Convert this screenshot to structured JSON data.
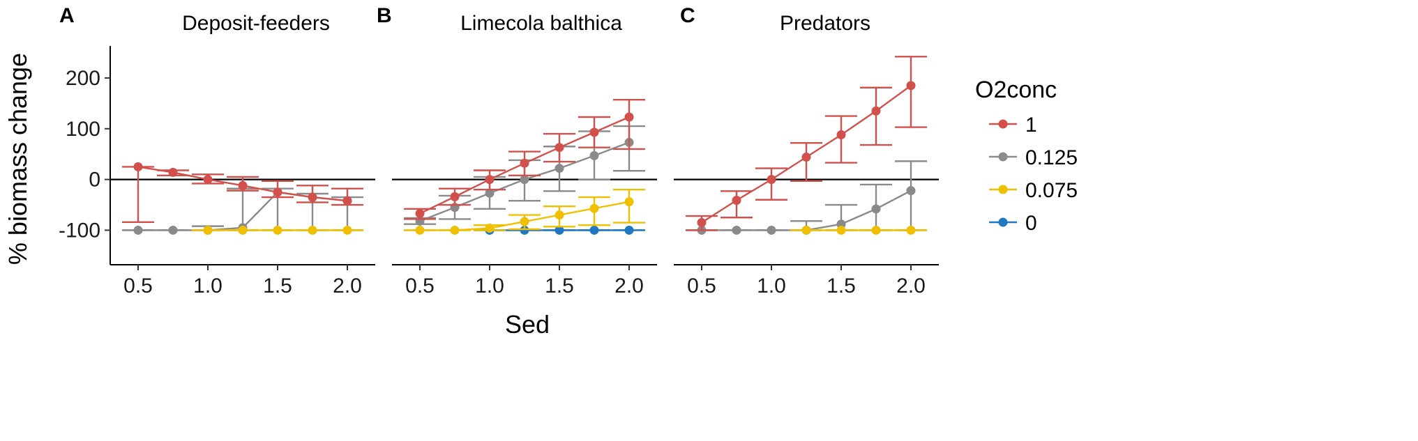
{
  "chart_data": {
    "type": "line",
    "xlabel": "Sed",
    "ylabel": "% biomass change",
    "xlim": [
      0.3,
      2.2
    ],
    "ylim": [
      -168,
      263
    ],
    "x_ticks": [
      0.5,
      1.0,
      1.5,
      2.0
    ],
    "x_tick_labels": [
      "0.5",
      "1.0",
      "1.5",
      "2.0"
    ],
    "y_ticks": [
      -100,
      0,
      100,
      200
    ],
    "y_tick_labels": [
      "-100",
      "0",
      "100",
      "200"
    ],
    "reference_line_y": 0,
    "x": [
      0.5,
      0.75,
      1.0,
      1.25,
      1.5,
      1.75,
      2.0
    ],
    "legend": {
      "title": "O2conc",
      "placement": "right",
      "entries": [
        {
          "label": "1",
          "color": "#d1504b"
        },
        {
          "label": "0.125",
          "color": "#8a8a8a"
        },
        {
          "label": "0.075",
          "color": "#f0c000"
        },
        {
          "label": "0",
          "color": "#1f78c1"
        }
      ]
    },
    "panels": [
      {
        "letter": "A",
        "title": "Deposit-feeders",
        "series": [
          {
            "name": "0.125",
            "color": "#8a8a8a",
            "values": [
              -100,
              -100,
              -100,
              -95,
              -25,
              -35,
              -42
            ],
            "lower": [
              -100,
              -100,
              -100,
              -100,
              -100,
              -100,
              -100
            ],
            "upper": [
              -100,
              -100,
              -92,
              -18,
              -18,
              -28,
              -35
            ]
          },
          {
            "name": "0.075",
            "color": "#f0c000",
            "values": [
              null,
              null,
              -100,
              -100,
              -100,
              -100,
              -100
            ],
            "lower": [
              null,
              null,
              -100,
              -100,
              -100,
              -100,
              -100
            ],
            "upper": [
              null,
              null,
              -100,
              -100,
              -100,
              -100,
              -100
            ]
          },
          {
            "name": "1",
            "color": "#d1504b",
            "values": [
              25,
              14,
              0,
              -12,
              -25,
              -35,
              -42
            ],
            "lower": [
              -84,
              8,
              -8,
              -22,
              -35,
              -45,
              -50
            ],
            "upper": [
              25,
              18,
              10,
              5,
              -3,
              -12,
              -18
            ]
          }
        ]
      },
      {
        "letter": "B",
        "title": "Limecola balthica",
        "series": [
          {
            "name": "0",
            "color": "#1f78c1",
            "values": [
              null,
              null,
              -100,
              -100,
              -100,
              -100,
              -100
            ],
            "lower": [
              null,
              null,
              -100,
              -100,
              -100,
              -100,
              -100
            ],
            "upper": [
              null,
              null,
              -100,
              -100,
              -100,
              -100,
              -100
            ]
          },
          {
            "name": "0.075",
            "color": "#f0c000",
            "values": [
              -100,
              -100,
              -96,
              -83,
              -70,
              -57,
              -44
            ],
            "lower": [
              -100,
              -100,
              -100,
              -98,
              -93,
              -90,
              -85
            ],
            "upper": [
              -100,
              -100,
              -90,
              -70,
              -53,
              -35,
              -20
            ]
          },
          {
            "name": "0.125",
            "color": "#8a8a8a",
            "values": [
              -82,
              -55,
              -27,
              0,
              22,
              47,
              73
            ],
            "lower": [
              -88,
              -78,
              -58,
              -42,
              -23,
              0,
              17
            ],
            "upper": [
              -76,
              -32,
              5,
              38,
              65,
              95,
              105
            ]
          },
          {
            "name": "1",
            "color": "#d1504b",
            "values": [
              -67,
              -34,
              0,
              32,
              63,
              93,
              123
            ],
            "lower": [
              -78,
              -50,
              -20,
              8,
              35,
              63,
              60
            ],
            "upper": [
              -58,
              -18,
              18,
              55,
              90,
              123,
              157
            ]
          }
        ]
      },
      {
        "letter": "C",
        "title": "Predators",
        "series": [
          {
            "name": "0.125",
            "color": "#8a8a8a",
            "values": [
              -100,
              -100,
              -100,
              -100,
              -88,
              -58,
              -22
            ],
            "lower": [
              -100,
              -100,
              -100,
              -100,
              -100,
              -100,
              -100
            ],
            "upper": [
              -100,
              -100,
              -100,
              -82,
              -50,
              -10,
              36
            ]
          },
          {
            "name": "0.075",
            "color": "#f0c000",
            "values": [
              null,
              null,
              null,
              -100,
              -100,
              -100,
              -100
            ],
            "lower": [
              null,
              null,
              null,
              -100,
              -100,
              -100,
              -100
            ],
            "upper": [
              null,
              null,
              null,
              -100,
              -100,
              -100,
              -100
            ]
          },
          {
            "name": "1",
            "color": "#d1504b",
            "values": [
              -85,
              -41,
              0,
              44,
              88,
              135,
              185
            ],
            "lower": [
              -100,
              -75,
              -40,
              -3,
              33,
              68,
              103
            ],
            "upper": [
              -72,
              -23,
              22,
              72,
              125,
              181,
              242
            ]
          }
        ]
      }
    ]
  }
}
